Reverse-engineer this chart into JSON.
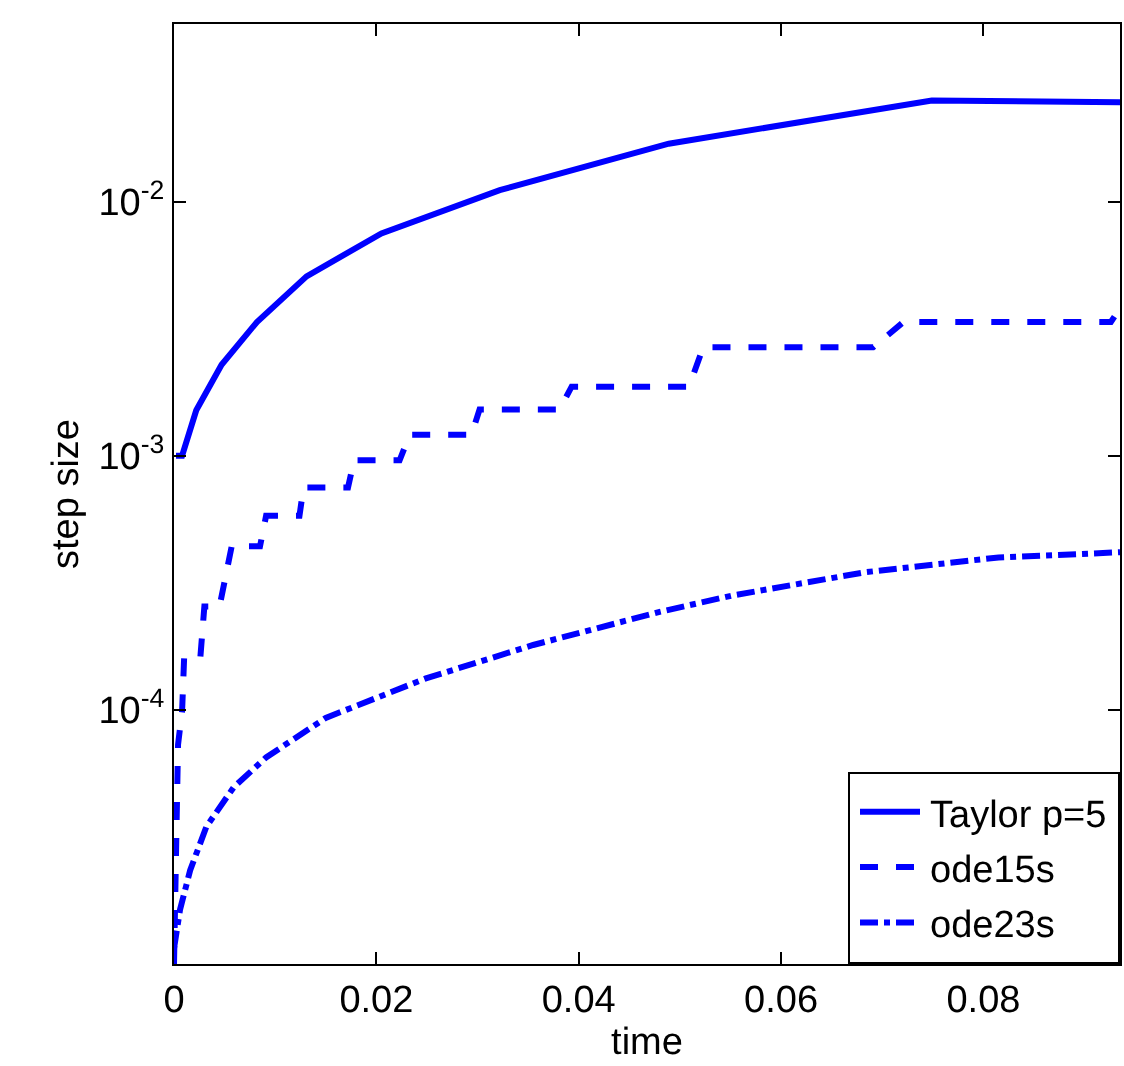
{
  "chart_data": {
    "type": "line",
    "xlabel": "time",
    "ylabel": "step size",
    "log": "y",
    "xlim": [
      0,
      0.0935
    ],
    "xticks": [
      0,
      0.02,
      0.04,
      0.06,
      0.08
    ],
    "ylim": [
      1e-05,
      0.05
    ],
    "yticks": [
      {
        "value": 0.0001,
        "label": "10$^{-4}$"
      },
      {
        "value": 0.001,
        "label": "10$^{-3}$"
      },
      {
        "value": 0.01,
        "label": "10$^{-2}$"
      }
    ],
    "legend": "bottom right",
    "marker": "none",
    "series": [
      {
        "name": "Taylor p=5",
        "color": "#0000ff",
        "line_style": "solid",
        "x": [
          0.0002,
          0.0008,
          0.0022,
          0.0047,
          0.0082,
          0.0131,
          0.0205,
          0.0322,
          0.0489,
          0.0749,
          0.0935
        ],
        "values": [
          0.001,
          0.001,
          0.00151,
          0.00228,
          0.00336,
          0.00508,
          0.0075,
          0.0111,
          0.0169,
          0.025,
          0.0246
        ]
      },
      {
        "name": "ode15s",
        "color": "#0000ff",
        "line_style": "dashed",
        "x": [
          0,
          0.0004,
          0.0008,
          0.001,
          0.0026,
          0.003,
          0.0045,
          0.0057,
          0.0085,
          0.0091,
          0.0124,
          0.0128,
          0.0172,
          0.0178,
          0.0223,
          0.0233,
          0.0294,
          0.0302,
          0.0381,
          0.0393,
          0.0509,
          0.0523,
          0.0691,
          0.0721,
          0.0926,
          0.0935
        ],
        "values": [
          1e-05,
          7.3e-05,
          9.9e-05,
          0.00016,
          0.00016,
          0.000255,
          0.000255,
          0.00044,
          0.00044,
          0.00058,
          0.00058,
          0.00075,
          0.00075,
          0.00096,
          0.00096,
          0.00121,
          0.00121,
          0.00152,
          0.00152,
          0.00187,
          0.00187,
          0.00267,
          0.00267,
          0.00336,
          0.00336,
          0.0038
        ]
      },
      {
        "name": "ode23s",
        "color": "#0000ff",
        "line_style": "dashdot",
        "x": [
          0,
          0.0006,
          0.0016,
          0.0032,
          0.0059,
          0.0091,
          0.015,
          0.0249,
          0.0355,
          0.048,
          0.0552,
          0.0683,
          0.0815,
          0.0935
        ],
        "values": [
          1.15e-05,
          1.64e-05,
          2.34e-05,
          3.47e-05,
          4.96e-05,
          6.5e-05,
          9.3e-05,
          0.000133,
          0.00018,
          0.000243,
          0.000282,
          0.000348,
          0.000398,
          0.000417
        ]
      }
    ]
  }
}
